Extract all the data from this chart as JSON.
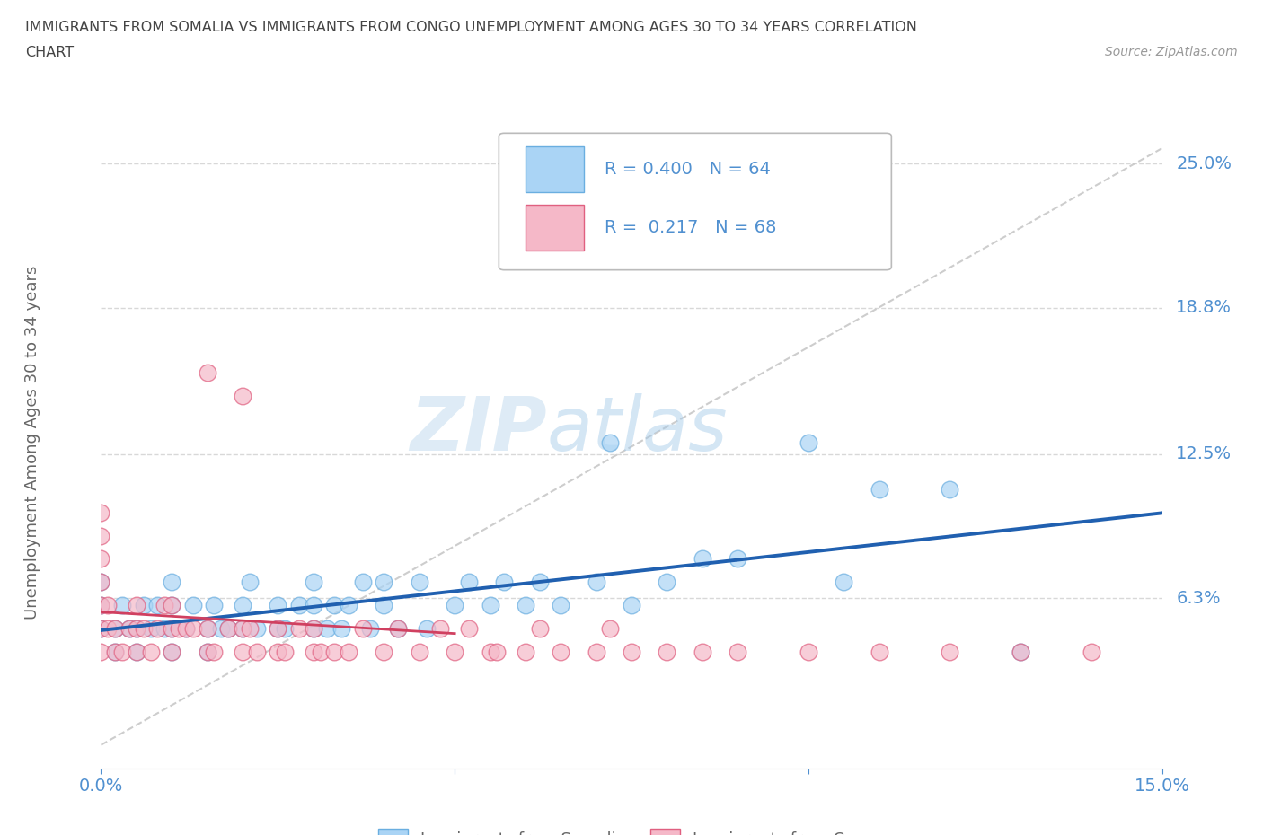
{
  "title_line1": "IMMIGRANTS FROM SOMALIA VS IMMIGRANTS FROM CONGO UNEMPLOYMENT AMONG AGES 30 TO 34 YEARS CORRELATION",
  "title_line2": "CHART",
  "source": "Source: ZipAtlas.com",
  "ylabel": "Unemployment Among Ages 30 to 34 years",
  "xlim": [
    0.0,
    0.15
  ],
  "ylim": [
    -0.01,
    0.27
  ],
  "ytick_right_labels": [
    "25.0%",
    "18.8%",
    "12.5%",
    "6.3%"
  ],
  "ytick_right_values": [
    0.25,
    0.188,
    0.125,
    0.063
  ],
  "xtick_labels": [
    "0.0%",
    "15.0%"
  ],
  "xtick_values": [
    0.0,
    0.15
  ],
  "somalia_color": "#aad4f5",
  "somalia_edge": "#6aaee0",
  "congo_color": "#f5b8c8",
  "congo_edge": "#e06080",
  "somalia_line_color": "#2060b0",
  "congo_line_color": "#d04060",
  "diagonal_color": "#c8c8c8",
  "grid_color": "#d8d8d8",
  "R_somalia": 0.4,
  "N_somalia": 64,
  "R_congo": 0.217,
  "N_congo": 68,
  "legend_label_somalia": "Immigrants from Somalia",
  "legend_label_congo": "Immigrants from Congo",
  "watermark_zip": "ZIP",
  "watermark_atlas": "atlas",
  "somalia_x": [
    0.0,
    0.0,
    0.0,
    0.002,
    0.002,
    0.003,
    0.004,
    0.005,
    0.005,
    0.006,
    0.007,
    0.008,
    0.009,
    0.01,
    0.01,
    0.01,
    0.01,
    0.012,
    0.013,
    0.015,
    0.015,
    0.016,
    0.017,
    0.018,
    0.02,
    0.02,
    0.021,
    0.022,
    0.025,
    0.025,
    0.026,
    0.028,
    0.03,
    0.03,
    0.03,
    0.032,
    0.033,
    0.034,
    0.035,
    0.037,
    0.038,
    0.04,
    0.04,
    0.042,
    0.045,
    0.046,
    0.05,
    0.052,
    0.055,
    0.057,
    0.06,
    0.062,
    0.065,
    0.07,
    0.072,
    0.075,
    0.08,
    0.085,
    0.09,
    0.1,
    0.105,
    0.11,
    0.12,
    0.13
  ],
  "somalia_y": [
    0.05,
    0.06,
    0.07,
    0.04,
    0.05,
    0.06,
    0.05,
    0.04,
    0.05,
    0.06,
    0.05,
    0.06,
    0.05,
    0.04,
    0.05,
    0.06,
    0.07,
    0.05,
    0.06,
    0.04,
    0.05,
    0.06,
    0.05,
    0.05,
    0.05,
    0.06,
    0.07,
    0.05,
    0.05,
    0.06,
    0.05,
    0.06,
    0.05,
    0.06,
    0.07,
    0.05,
    0.06,
    0.05,
    0.06,
    0.07,
    0.05,
    0.06,
    0.07,
    0.05,
    0.07,
    0.05,
    0.06,
    0.07,
    0.06,
    0.07,
    0.06,
    0.07,
    0.06,
    0.07,
    0.13,
    0.06,
    0.07,
    0.08,
    0.08,
    0.13,
    0.07,
    0.11,
    0.11,
    0.04
  ],
  "congo_x": [
    0.0,
    0.0,
    0.0,
    0.0,
    0.0,
    0.0,
    0.0,
    0.001,
    0.001,
    0.002,
    0.002,
    0.003,
    0.004,
    0.005,
    0.005,
    0.005,
    0.006,
    0.007,
    0.008,
    0.009,
    0.01,
    0.01,
    0.01,
    0.011,
    0.012,
    0.013,
    0.015,
    0.015,
    0.016,
    0.018,
    0.02,
    0.02,
    0.021,
    0.022,
    0.025,
    0.025,
    0.026,
    0.028,
    0.03,
    0.03,
    0.031,
    0.033,
    0.035,
    0.037,
    0.04,
    0.042,
    0.045,
    0.048,
    0.05,
    0.052,
    0.055,
    0.056,
    0.06,
    0.062,
    0.065,
    0.07,
    0.072,
    0.075,
    0.08,
    0.085,
    0.09,
    0.1,
    0.11,
    0.12,
    0.13,
    0.14,
    0.015,
    0.02
  ],
  "congo_y": [
    0.04,
    0.05,
    0.06,
    0.07,
    0.08,
    0.09,
    0.1,
    0.05,
    0.06,
    0.04,
    0.05,
    0.04,
    0.05,
    0.04,
    0.05,
    0.06,
    0.05,
    0.04,
    0.05,
    0.06,
    0.04,
    0.05,
    0.06,
    0.05,
    0.05,
    0.05,
    0.04,
    0.05,
    0.04,
    0.05,
    0.04,
    0.05,
    0.05,
    0.04,
    0.04,
    0.05,
    0.04,
    0.05,
    0.04,
    0.05,
    0.04,
    0.04,
    0.04,
    0.05,
    0.04,
    0.05,
    0.04,
    0.05,
    0.04,
    0.05,
    0.04,
    0.04,
    0.04,
    0.05,
    0.04,
    0.04,
    0.05,
    0.04,
    0.04,
    0.04,
    0.04,
    0.04,
    0.04,
    0.04,
    0.04,
    0.04,
    0.16,
    0.15
  ]
}
